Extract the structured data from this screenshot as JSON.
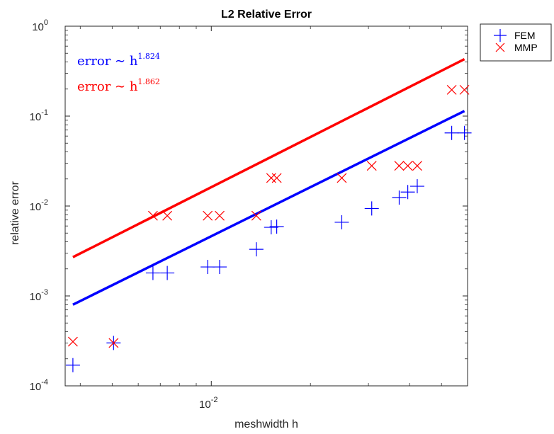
{
  "chart_data": {
    "type": "scatter",
    "title": "L2 Relative Error",
    "xlabel": "meshwidth h",
    "ylabel": "relative error",
    "xscale": "log",
    "yscale": "log",
    "xlim": [
      0.0036,
      0.06
    ],
    "ylim": [
      0.0001,
      1
    ],
    "grid": false,
    "legend_position": "outside-top-right",
    "x_ticks": [
      {
        "base": "10",
        "exp": "-2"
      }
    ],
    "y_ticks": [
      {
        "base": "10",
        "exp": "0"
      },
      {
        "base": "10",
        "exp": "-1"
      },
      {
        "base": "10",
        "exp": "-2"
      },
      {
        "base": "10",
        "exp": "-3"
      },
      {
        "base": "10",
        "exp": "-4"
      }
    ],
    "series": [
      {
        "name": "FEM",
        "marker": "plus",
        "color": "#0000ff",
        "x": [
          0.0038,
          0.00505,
          0.00665,
          0.00735,
          0.00975,
          0.0106,
          0.0137,
          0.0152,
          0.0158,
          0.0249,
          0.0307,
          0.0372,
          0.0395,
          0.0422,
          0.0537,
          0.0587
        ],
        "y": [
          0.00017,
          0.0003,
          0.0018,
          0.0018,
          0.0021,
          0.0021,
          0.0033,
          0.0058,
          0.0059,
          0.0066,
          0.0094,
          0.0124,
          0.0143,
          0.0166,
          0.065,
          0.065
        ]
      },
      {
        "name": "MMP",
        "marker": "x",
        "color": "#ff0000",
        "x": [
          0.0038,
          0.00505,
          0.00665,
          0.00735,
          0.00975,
          0.0106,
          0.0137,
          0.0152,
          0.0158,
          0.0249,
          0.0307,
          0.0372,
          0.0395,
          0.0422,
          0.0537,
          0.0587
        ],
        "y": [
          0.00031,
          0.0003,
          0.0078,
          0.0078,
          0.0078,
          0.0078,
          0.0078,
          0.0205,
          0.0205,
          0.0205,
          0.028,
          0.028,
          0.028,
          0.028,
          0.196,
          0.196
        ]
      }
    ],
    "lines": [
      {
        "color": "#0000ff",
        "x": [
          0.0038,
          0.0587
        ],
        "y": [
          0.0008,
          0.114
        ]
      },
      {
        "color": "#ff0000",
        "x": [
          0.0038,
          0.0587
        ],
        "y": [
          0.0027,
          0.43
        ]
      }
    ],
    "annotations": [
      {
        "text": "error ∼ h",
        "sup": "1.824",
        "color": "#0000ff"
      },
      {
        "text": "error ∼ h",
        "sup": "1.862",
        "color": "#ff0000"
      }
    ]
  }
}
